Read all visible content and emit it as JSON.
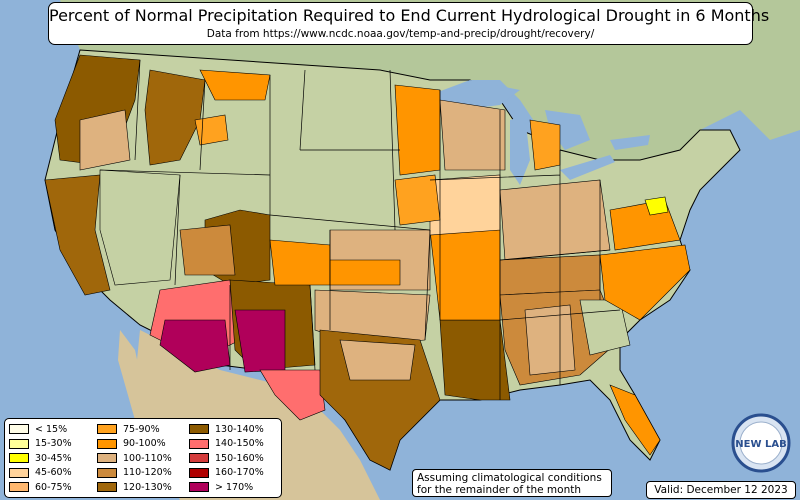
{
  "title": "Percent of Normal Precipitation Required to End Current Hydrological Drought in 6 Months",
  "subtitle": "Data from https://www.ncdc.noaa.gov/temp-and-precip/drought/recovery/",
  "legend": [
    {
      "label": "< 15%",
      "color": "#fffde8"
    },
    {
      "label": "15-30%",
      "color": "#ffff99"
    },
    {
      "label": "30-45%",
      "color": "#ffff00"
    },
    {
      "label": "45-60%",
      "color": "#ffd39b"
    },
    {
      "label": "60-75%",
      "color": "#ffb870"
    },
    {
      "label": "75-90%",
      "color": "#ffa21f"
    },
    {
      "label": "90-100%",
      "color": "#ff9500"
    },
    {
      "label": "100-110%",
      "color": "#deb27f"
    },
    {
      "label": "110-120%",
      "color": "#cc8a3c"
    },
    {
      "label": "120-130%",
      "color": "#a0670b"
    },
    {
      "label": "130-140%",
      "color": "#8c5a00"
    },
    {
      "label": "140-150%",
      "color": "#ff6e6e"
    },
    {
      "label": "150-160%",
      "color": "#d43c3c"
    },
    {
      "label": "160-170%",
      "color": "#b00000"
    },
    {
      "label": "> 170%",
      "color": "#b0005a"
    }
  ],
  "note_line1": "Assuming climatological conditions",
  "note_line2": "for the remainder of the month",
  "valid": "Valid: December 12 2023",
  "logo_text": "NEW LAB",
  "colors": {
    "ocean": "#8fb3d9",
    "land": "#c5d1a4",
    "mexico": "#d6c49a",
    "canada": "#b4c79a"
  }
}
